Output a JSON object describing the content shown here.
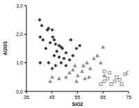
{
  "chart_data": {
    "type": "scatter",
    "x_label": "SiO2",
    "y_label": "Al2O3",
    "xlim": [
      35,
      75
    ],
    "xticks": [
      35,
      45,
      55,
      65,
      75
    ],
    "ylim": [
      0,
      3
    ],
    "yticks": [
      {
        "value": 0,
        "label": "0,0"
      },
      {
        "value": 1,
        "label": "1,0"
      },
      {
        "value": 2,
        "label": "2,0"
      },
      {
        "value": 3,
        "label": "3,0"
      }
    ],
    "grid": false,
    "series": [
      {
        "marker": "diamond",
        "color": "#333333",
        "x": [
          40.2,
          41.0,
          43.2,
          43.7,
          45.1,
          45.3,
          45.9,
          44.3,
          46.4,
          47.8,
          48.6,
          49.1,
          46.9,
          50.5,
          45.9,
          47.8,
          49.7,
          51.9,
          48.6,
          50.5,
          53.2,
          54.6,
          55.9,
          40.4,
          41.5,
          42.6,
          43.7,
          45.1,
          46.4,
          52.4,
          40.4
        ],
        "values": [
          2.5,
          2.3,
          2.15,
          2.2,
          2.15,
          1.9,
          1.8,
          1.7,
          1.65,
          1.6,
          1.55,
          1.5,
          1.4,
          1.35,
          1.25,
          1.2,
          1.15,
          1.1,
          1.0,
          0.9,
          1.25,
          1.5,
          1.6,
          1.9,
          1.8,
          1.5,
          1.0,
          0.8,
          0.9,
          1.8,
          1.0
        ]
      },
      {
        "marker": "triangle",
        "color": "#999999",
        "x": [
          44.3,
          45.1,
          47.8,
          50.5,
          51.9,
          53.2,
          54.0,
          55.1,
          56.8,
          57.3,
          58.7,
          60.0,
          61.4,
          62.8,
          65.0,
          64.1,
          57.9,
          54.6,
          65.5,
          59.5
        ],
        "values": [
          0.35,
          0.5,
          0.45,
          0.5,
          0.65,
          0.75,
          0.9,
          0.55,
          0.7,
          0.9,
          1.0,
          0.8,
          1.15,
          1.25,
          1.55,
          1.0,
          0.45,
          0.35,
          0.55,
          0.5
        ]
      },
      {
        "marker": "square",
        "color": "#555555",
        "x": [
          64.1,
          65.5,
          66.8,
          68.2,
          69.6,
          70.4,
          71.5,
          72.3,
          73.6,
          65.5,
          67.6,
          74.8
        ],
        "values": [
          0.25,
          0.35,
          0.45,
          0.25,
          0.35,
          0.5,
          0.4,
          0.25,
          0.6,
          0.7,
          0.65,
          0.65
        ]
      }
    ]
  }
}
